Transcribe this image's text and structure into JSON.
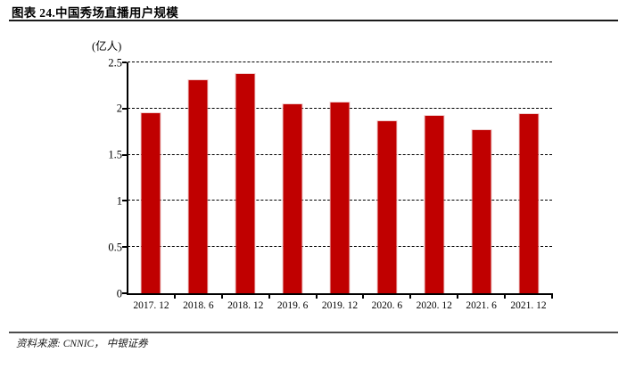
{
  "header": {
    "title": "图表 24.中国秀场直播用户规模"
  },
  "chart_data": {
    "type": "bar",
    "title": "中国秀场直播用户规模",
    "unit_label": "(亿人)",
    "xlabel": "",
    "ylabel": "亿人",
    "categories": [
      "2017. 12",
      "2018. 6",
      "2018. 12",
      "2019. 6",
      "2019. 12",
      "2020. 6",
      "2020. 12",
      "2021. 6",
      "2021. 12"
    ],
    "values": [
      1.95,
      2.31,
      2.37,
      2.05,
      2.07,
      1.86,
      1.92,
      1.77,
      1.94
    ],
    "ylim": [
      0,
      2.5
    ],
    "y_ticks": [
      {
        "v": 0,
        "label": "0"
      },
      {
        "v": 0.5,
        "label": "0.5"
      },
      {
        "v": 1,
        "label": "1"
      },
      {
        "v": 1.5,
        "label": "1.5"
      },
      {
        "v": 2,
        "label": "2"
      },
      {
        "v": 2.5,
        "label": "2.5"
      }
    ],
    "bar_color": "#c00000",
    "grid": "horizontal-dashed",
    "legend_position": "none"
  },
  "footer": {
    "source": "资料来源: CNNIC， 中银证券"
  }
}
